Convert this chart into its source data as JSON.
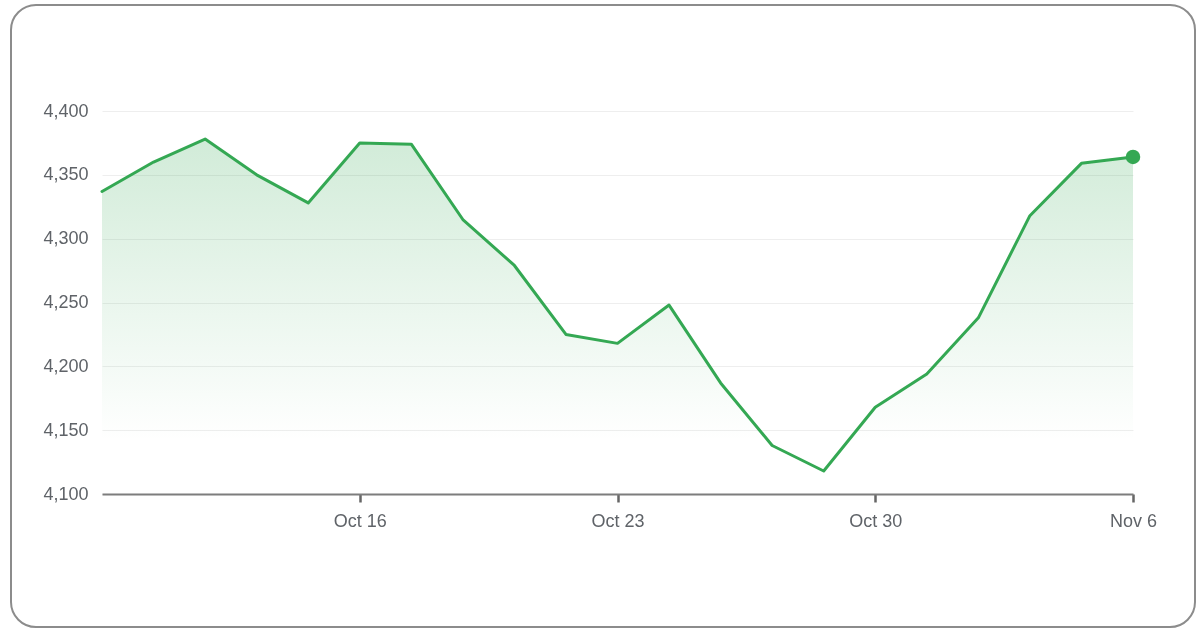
{
  "chart_data": {
    "type": "area",
    "categories": [
      null,
      null,
      null,
      null,
      null,
      "Oct 16",
      null,
      null,
      null,
      null,
      "Oct 23",
      null,
      null,
      null,
      null,
      "Oct 30",
      null,
      null,
      null,
      null,
      "Nov 6"
    ],
    "series": [
      {
        "color": "#34a853",
        "values": [
          4337,
          4360,
          4378,
          4350,
          4328,
          4375,
          4374,
          4315,
          4279,
          4225,
          4218,
          4248,
          4187,
          4138,
          4118,
          4168,
          4194,
          4238,
          4318,
          4359,
          4364
        ]
      },
      {
        "type": "scatter",
        "x": [
          "Nov 6"
        ],
        "color": "#34a853",
        "values": [
          4364
        ]
      }
    ],
    "ylim": [
      4100,
      4400
    ],
    "yticks": [
      {
        "value": 4100,
        "label": "4,100"
      },
      {
        "value": 4150,
        "label": "4,150"
      },
      {
        "value": 4200,
        "label": "4,200"
      },
      {
        "value": 4250,
        "label": "4,250"
      },
      {
        "value": 4300,
        "label": "4,300"
      },
      {
        "value": 4350,
        "label": "4,350"
      },
      {
        "value": 4400,
        "label": "4,400"
      }
    ],
    "grid": "y"
  }
}
